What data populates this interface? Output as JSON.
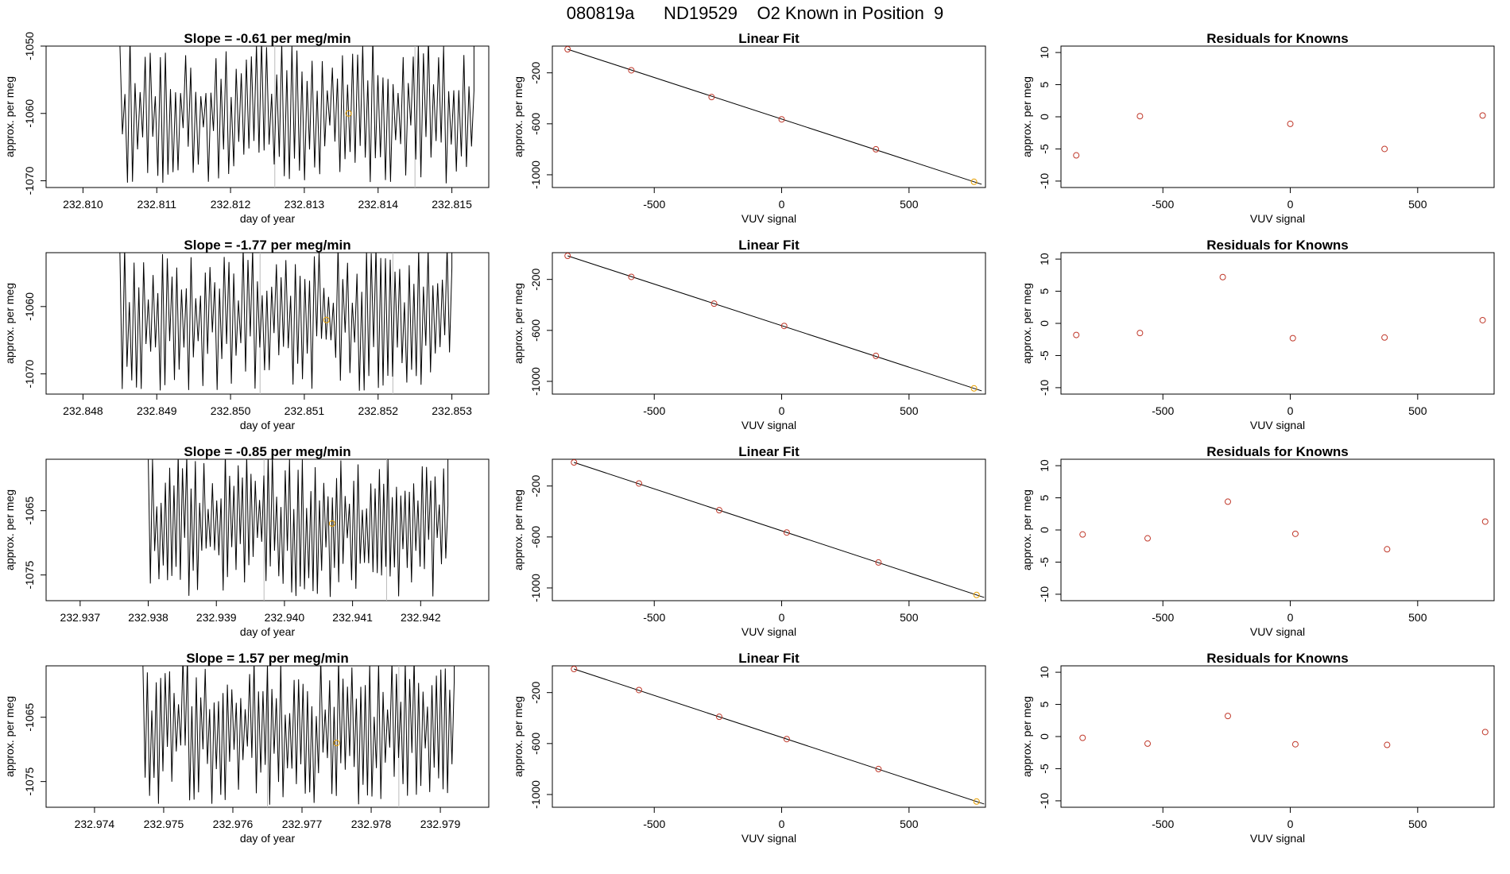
{
  "page": {
    "title": "080819a      ND19529    O2 Known in Position  9"
  },
  "colors": {
    "series": "#000000",
    "fit_point": "#c0392b",
    "last_point": "#e69f00",
    "marker_line": "#bbbbbb"
  },
  "labels": {
    "slope_prefix": "Slope =  ",
    "slope_suffix": "  per meg/min",
    "linear_fit_title": "Linear Fit",
    "residuals_title": "Residuals for Knowns",
    "time_xlabel": "day of year",
    "ylabel": "approx. per meg",
    "vuv_xlabel": "VUV signal"
  },
  "chart_data": [
    {
      "row": 1,
      "slope": "-0.61",
      "time_series": {
        "type": "line",
        "x_ticks": [
          "232.810",
          "232.811",
          "232.812",
          "232.813",
          "232.814",
          "232.815"
        ],
        "xlim": [
          232.8095,
          232.8155
        ],
        "y_ticks": [
          "-1050",
          "-1060",
          "-1070"
        ],
        "ylim": [
          -1071,
          -1050
        ],
        "start": 232.8105,
        "end": 232.8153,
        "series_min": -1070,
        "series_max": -1050,
        "markers": [
          232.8126,
          232.8145
        ],
        "point": {
          "x": 232.8136,
          "y": -1060
        }
      },
      "linear_fit": {
        "type": "scatter",
        "x": [
          -840,
          -590,
          -275,
          0,
          370,
          755
        ],
        "y": [
          -15,
          -180,
          -390,
          -565,
          -800,
          -1055
        ],
        "xlim": [
          -900,
          800
        ],
        "ylim": [
          -1100,
          10
        ],
        "x_ticks": [
          "-500",
          "0",
          "500"
        ],
        "y_ticks": [
          "-200",
          "-600",
          "-1000"
        ]
      },
      "residuals": {
        "type": "scatter",
        "x": [
          -840,
          -590,
          0,
          370,
          755
        ],
        "y": [
          -6,
          0.1,
          -1.1,
          -5,
          0.2
        ],
        "xlim": [
          -900,
          800
        ],
        "ylim": [
          -11,
          11
        ],
        "x_ticks": [
          "-500",
          "0",
          "500"
        ],
        "y_ticks": [
          "10",
          "5",
          "0",
          "-5",
          "-10"
        ]
      }
    },
    {
      "row": 2,
      "slope": "-1.77",
      "time_series": {
        "type": "line",
        "x_ticks": [
          "232.848",
          "232.849",
          "232.850",
          "232.851",
          "232.852",
          "232.853"
        ],
        "xlim": [
          232.8475,
          232.8535
        ],
        "y_ticks": [
          "-1060",
          "-1070"
        ],
        "ylim": [
          -1073,
          -1052
        ],
        "start": 232.8485,
        "end": 232.853,
        "series_min": -1072,
        "series_max": -1052,
        "markers": [
          232.8504,
          232.8522
        ],
        "point": {
          "x": 232.8513,
          "y": -1062
        }
      },
      "linear_fit": {
        "type": "scatter",
        "x": [
          -840,
          -590,
          -265,
          10,
          370,
          755
        ],
        "y": [
          -15,
          -180,
          -390,
          -565,
          -800,
          -1055
        ],
        "xlim": [
          -900,
          800
        ],
        "ylim": [
          -1100,
          10
        ],
        "x_ticks": [
          "-500",
          "0",
          "500"
        ],
        "y_ticks": [
          "-200",
          "-600",
          "-1000"
        ]
      },
      "residuals": {
        "type": "scatter",
        "x": [
          -840,
          -590,
          -265,
          10,
          370,
          755
        ],
        "y": [
          -1.8,
          -1.5,
          7.2,
          -2.3,
          -2.2,
          0.5
        ],
        "xlim": [
          -900,
          800
        ],
        "ylim": [
          -11,
          11
        ],
        "x_ticks": [
          "-500",
          "0",
          "500"
        ],
        "y_ticks": [
          "10",
          "5",
          "0",
          "-5",
          "-10"
        ]
      }
    },
    {
      "row": 3,
      "slope": "-0.85",
      "time_series": {
        "type": "line",
        "x_ticks": [
          "232.937",
          "232.938",
          "232.939",
          "232.940",
          "232.941",
          "232.942"
        ],
        "xlim": [
          232.9365,
          232.943
        ],
        "y_ticks": [
          "-1065",
          "-1075"
        ],
        "ylim": [
          -1079,
          -1057
        ],
        "start": 232.938,
        "end": 232.9424,
        "series_min": -1078,
        "series_max": -1057,
        "markers": [
          232.9397,
          232.9415
        ],
        "point": {
          "x": 232.9407,
          "y": -1067
        }
      },
      "linear_fit": {
        "type": "scatter",
        "x": [
          -815,
          -560,
          -245,
          20,
          380,
          765
        ],
        "y": [
          -15,
          -180,
          -390,
          -565,
          -800,
          -1055
        ],
        "xlim": [
          -900,
          800
        ],
        "ylim": [
          -1100,
          10
        ],
        "x_ticks": [
          "-500",
          "0",
          "500"
        ],
        "y_ticks": [
          "-200",
          "-600",
          "-1000"
        ]
      },
      "residuals": {
        "type": "scatter",
        "x": [
          -815,
          -560,
          -245,
          20,
          380,
          765
        ],
        "y": [
          -0.7,
          -1.3,
          4.4,
          -0.6,
          -3,
          1.3
        ],
        "xlim": [
          -900,
          800
        ],
        "ylim": [
          -11,
          11
        ],
        "x_ticks": [
          "-500",
          "0",
          "500"
        ],
        "y_ticks": [
          "10",
          "5",
          "0",
          "-5",
          "-10"
        ]
      }
    },
    {
      "row": 4,
      "slope": "1.57",
      "time_series": {
        "type": "line",
        "x_ticks": [
          "232.974",
          "232.975",
          "232.976",
          "232.977",
          "232.978",
          "232.979"
        ],
        "xlim": [
          232.9733,
          232.9797
        ],
        "y_ticks": [
          "-1065",
          "-1075"
        ],
        "ylim": [
          -1079,
          -1057
        ],
        "start": 232.9747,
        "end": 232.9792,
        "series_min": -1078,
        "series_max": -1057,
        "markers": [
          232.9765,
          232.9784
        ],
        "point": {
          "x": 232.9775,
          "y": -1069
        }
      },
      "linear_fit": {
        "type": "scatter",
        "x": [
          -815,
          -560,
          -245,
          20,
          380,
          765
        ],
        "y": [
          -15,
          -180,
          -390,
          -565,
          -800,
          -1055
        ],
        "xlim": [
          -900,
          800
        ],
        "ylim": [
          -1100,
          10
        ],
        "x_ticks": [
          "-500",
          "0",
          "500"
        ],
        "y_ticks": [
          "-200",
          "-600",
          "-1000"
        ]
      },
      "residuals": {
        "type": "scatter",
        "x": [
          -815,
          -560,
          -245,
          20,
          380,
          765
        ],
        "y": [
          -0.2,
          -1.1,
          3.2,
          -1.2,
          -1.3,
          0.7
        ],
        "xlim": [
          -900,
          800
        ],
        "ylim": [
          -11,
          11
        ],
        "x_ticks": [
          "-500",
          "0",
          "500"
        ],
        "y_ticks": [
          "10",
          "5",
          "0",
          "-5",
          "-10"
        ]
      }
    }
  ]
}
